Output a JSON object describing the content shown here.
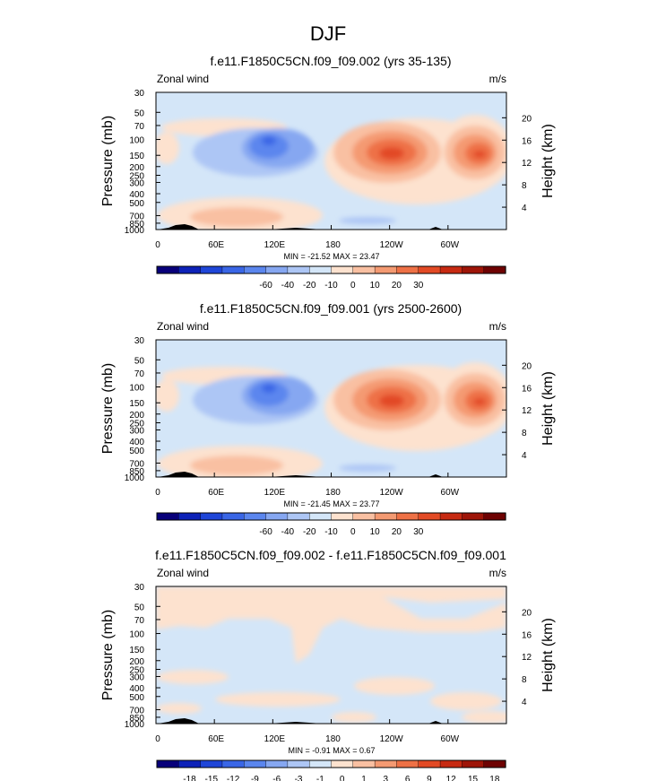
{
  "figure_title": "DJF",
  "chart_data": [
    {
      "type": "heatmap",
      "title": "f.e11.F1850C5CN.f09_f09.002 (yrs 35-135)",
      "left_label": "Zonal wind",
      "units": "m/s",
      "ylabel": "Pressure (mb)",
      "ylabel_right": "Height (km)",
      "pressure_ticks": [
        "30",
        "50",
        "70",
        "100",
        "150",
        "200",
        "250",
        "300",
        "400",
        "500",
        "700",
        "850",
        "1000"
      ],
      "height_ticks": [
        "20",
        "16",
        "12",
        "8",
        "4"
      ],
      "lon_ticks": [
        "0",
        "60E",
        "120E",
        "180",
        "120W",
        "60W"
      ],
      "stats": "MIN = -21.52  MAX =  23.47",
      "colorbar_labels": [
        "-60",
        "-40",
        "-20",
        "-10",
        "0",
        "10",
        "20",
        "30"
      ]
    },
    {
      "type": "heatmap",
      "title": "f.e11.F1850C5CN.f09_f09.001 (yrs 2500-2600)",
      "left_label": "Zonal wind",
      "units": "m/s",
      "ylabel": "Pressure (mb)",
      "ylabel_right": "Height (km)",
      "pressure_ticks": [
        "30",
        "50",
        "70",
        "100",
        "150",
        "200",
        "250",
        "300",
        "400",
        "500",
        "700",
        "850",
        "1000"
      ],
      "height_ticks": [
        "20",
        "16",
        "12",
        "8",
        "4"
      ],
      "lon_ticks": [
        "0",
        "60E",
        "120E",
        "180",
        "120W",
        "60W"
      ],
      "stats": "MIN = -21.45  MAX =  23.77",
      "colorbar_labels": [
        "-60",
        "-40",
        "-20",
        "-10",
        "0",
        "10",
        "20",
        "30"
      ]
    },
    {
      "type": "heatmap",
      "title": "f.e11.F1850C5CN.f09_f09.002 - f.e11.F1850C5CN.f09_f09.001",
      "left_label": "Zonal wind",
      "units": "m/s",
      "ylabel": "Pressure (mb)",
      "ylabel_right": "Height (km)",
      "pressure_ticks": [
        "30",
        "50",
        "70",
        "100",
        "150",
        "200",
        "250",
        "300",
        "400",
        "500",
        "700",
        "850",
        "1000"
      ],
      "height_ticks": [
        "20",
        "16",
        "12",
        "8",
        "4"
      ],
      "lon_ticks": [
        "0",
        "60E",
        "120E",
        "180",
        "120W",
        "60W"
      ],
      "stats": "MIN = -0.91  MAX =  0.67",
      "colorbar_labels": [
        "-18",
        "-15",
        "-12",
        "-9",
        "-6",
        "-3",
        "-1",
        "0",
        "1",
        "3",
        "6",
        "9",
        "12",
        "15",
        "18"
      ]
    }
  ],
  "colors": {
    "background_field": "#d4e6f8",
    "positive_light": "#fde2cf",
    "colorbar_palette": [
      "#08007a",
      "#0d22b8",
      "#1f46d8",
      "#3a66e6",
      "#5b86ee",
      "#86a7f1",
      "#adc6f5",
      "#d4e6f8",
      "#fde2cf",
      "#f9c0a2",
      "#f49a72",
      "#ee7146",
      "#e24a25",
      "#c72a12",
      "#9e1508",
      "#6e0202"
    ]
  }
}
